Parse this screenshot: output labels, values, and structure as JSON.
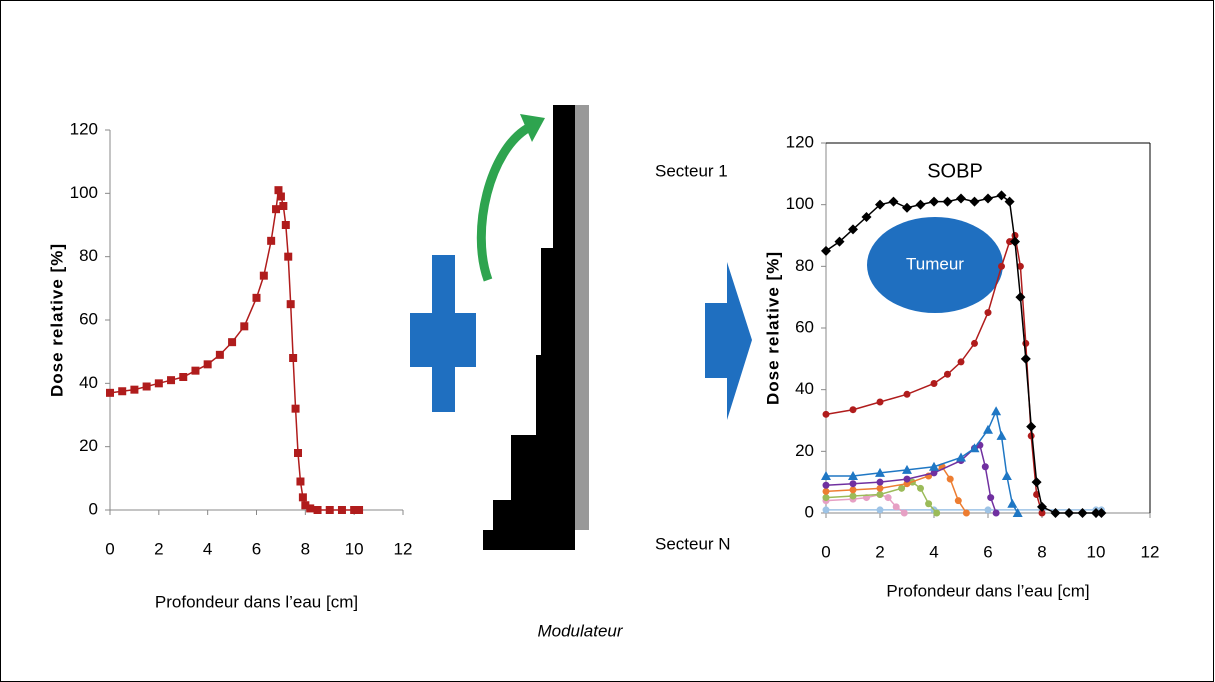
{
  "chart_data": [
    {
      "type": "line",
      "y_label": "Dose relative [%]",
      "x_label": "Profondeur dans l’eau [cm]",
      "xlim": [
        0,
        12
      ],
      "xticks": [
        0,
        2,
        4,
        6,
        8,
        10,
        12
      ],
      "ylim": [
        0,
        120
      ],
      "yticks": [
        0,
        20,
        40,
        60,
        80,
        100,
        120
      ],
      "box": false,
      "series": [
        {
          "color": "#b01c1c",
          "marker": "square",
          "x": [
            0,
            0.5,
            1,
            1.5,
            2,
            2.5,
            3,
            3.5,
            4,
            4.5,
            5,
            5.5,
            6,
            6.3,
            6.6,
            6.8,
            6.9,
            7.0,
            7.1,
            7.2,
            7.3,
            7.4,
            7.5,
            7.6,
            7.7,
            7.8,
            7.9,
            8.0,
            8.2,
            8.5,
            9,
            9.5,
            10,
            10.2
          ],
          "values": [
            37,
            37.5,
            38,
            39,
            40,
            41,
            42,
            44,
            46,
            49,
            53,
            58,
            67,
            74,
            85,
            95,
            101,
            99,
            96,
            90,
            80,
            65,
            48,
            32,
            18,
            9,
            4,
            1.5,
            0.5,
            0,
            0,
            0,
            0,
            0
          ]
        }
      ]
    },
    {
      "type": "line",
      "y_label": "Dose relative [%]",
      "x_label": "Profondeur dans l’eau [cm]",
      "xlim": [
        0,
        12
      ],
      "xticks": [
        0,
        2,
        4,
        6,
        8,
        10,
        12
      ],
      "ylim": [
        0,
        120
      ],
      "yticks": [
        0,
        20,
        40,
        60,
        80,
        100,
        120
      ],
      "box": true,
      "annotations": [
        "SOBP",
        "Tumeur"
      ],
      "series": [
        {
          "color": "#9dc3e6",
          "marker": "circle",
          "x": [
            0,
            2,
            4,
            6,
            8,
            10,
            10.2
          ],
          "values": [
            1,
            1,
            1,
            1,
            1,
            1,
            1
          ]
        },
        {
          "color": "#e6a0c4",
          "marker": "circle",
          "x": [
            0,
            1,
            1.5,
            2,
            2.3,
            2.6,
            2.9
          ],
          "values": [
            4,
            4.5,
            5,
            6,
            5,
            2,
            0
          ]
        },
        {
          "color": "#9bbb59",
          "marker": "circle",
          "x": [
            0,
            1,
            2,
            2.8,
            3.2,
            3.5,
            3.8,
            4.1
          ],
          "values": [
            5,
            5.5,
            6,
            8,
            10,
            8,
            3,
            0
          ]
        },
        {
          "color": "#ed7d31",
          "marker": "circle",
          "x": [
            0,
            1,
            2,
            3,
            3.8,
            4.3,
            4.6,
            4.9,
            5.2
          ],
          "values": [
            7,
            7.5,
            8,
            9.5,
            12,
            15,
            11,
            4,
            0
          ]
        },
        {
          "color": "#7030a0",
          "marker": "circle",
          "x": [
            0,
            1,
            2,
            3,
            4,
            5,
            5.5,
            5.7,
            5.9,
            6.1,
            6.3
          ],
          "values": [
            9,
            9.5,
            10,
            11,
            13,
            17,
            21,
            22,
            15,
            5,
            0
          ]
        },
        {
          "color": "#1f77c4",
          "marker": "triangle",
          "x": [
            0,
            1,
            2,
            3,
            4,
            5,
            5.5,
            6,
            6.3,
            6.5,
            6.7,
            6.9,
            7.1
          ],
          "values": [
            12,
            12,
            13,
            14,
            15,
            18,
            21,
            27,
            33,
            25,
            12,
            3,
            0
          ]
        },
        {
          "color": "#b01c1c",
          "marker": "circle",
          "x": [
            0,
            1,
            2,
            3,
            4,
            4.5,
            5,
            5.5,
            6,
            6.5,
            6.8,
            7.0,
            7.2,
            7.4,
            7.6,
            7.8,
            8.0
          ],
          "values": [
            32,
            33.5,
            36,
            38.5,
            42,
            45,
            49,
            55,
            65,
            80,
            88,
            90,
            80,
            55,
            25,
            6,
            0
          ]
        },
        {
          "color": "#000000",
          "marker": "diamond",
          "x": [
            0,
            0.5,
            1,
            1.5,
            2,
            2.5,
            3,
            3.5,
            4,
            4.5,
            5,
            5.5,
            6,
            6.5,
            6.8,
            7.0,
            7.2,
            7.4,
            7.6,
            7.8,
            8.0,
            8.5,
            9,
            9.5,
            10,
            10.2
          ],
          "values": [
            85,
            88,
            92,
            96,
            100,
            101,
            99,
            100,
            101,
            101,
            102,
            101,
            102,
            103,
            101,
            88,
            70,
            50,
            28,
            10,
            2,
            0,
            0,
            0,
            0,
            0
          ]
        }
      ]
    }
  ],
  "modulator": {
    "top_label": "Secteur 1",
    "bottom_label": "Secteur N",
    "caption": "Modulateur"
  }
}
